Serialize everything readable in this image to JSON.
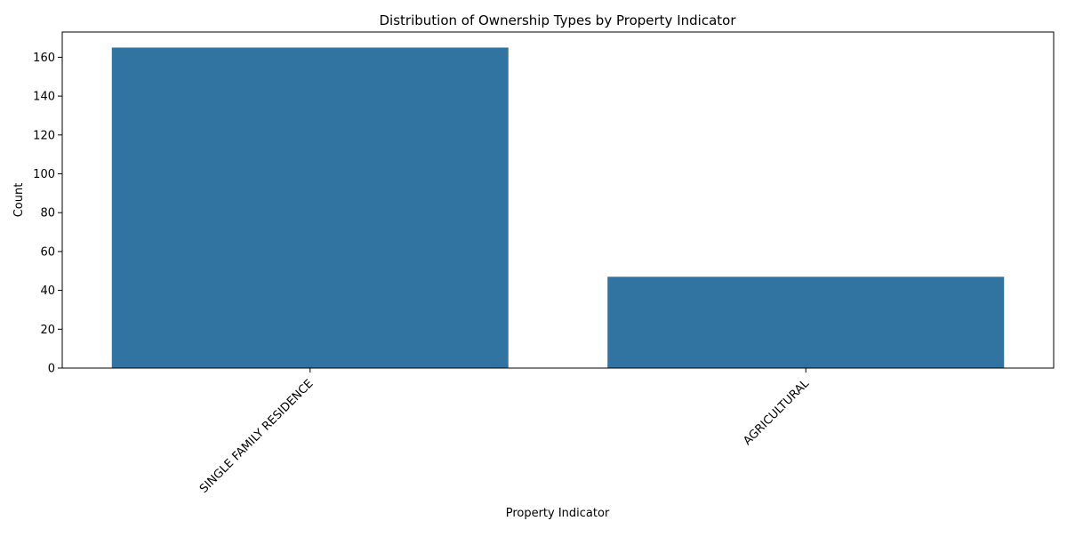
{
  "chart_data": {
    "type": "bar",
    "title": "Distribution of Ownership Types by Property Indicator",
    "xlabel": "Property Indicator",
    "ylabel": "Count",
    "categories": [
      "SINGLE FAMILY RESIDENCE",
      "AGRICULTURAL"
    ],
    "values": [
      165,
      47
    ],
    "ylim": [
      0,
      173
    ],
    "yticks": [
      0,
      20,
      40,
      60,
      80,
      100,
      120,
      140,
      160
    ],
    "grid": false,
    "legend": "none",
    "bar_color": "#3274a1"
  }
}
